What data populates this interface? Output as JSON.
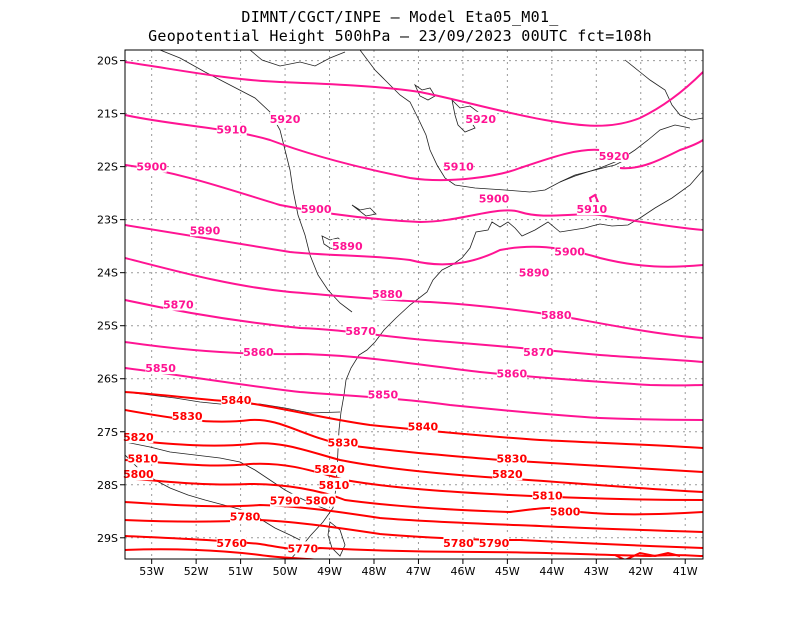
{
  "header": {
    "line1": "DIMNT/CGCT/INPE –  Model Eta05_M01_",
    "line2": "Geopotential Height 500hPa –  23/09/2023 00UTC fct=108h"
  },
  "axes": {
    "x_tick_labels": [
      "53W",
      "52W",
      "51W",
      "50W",
      "49W",
      "48W",
      "47W",
      "46W",
      "45W",
      "44W",
      "43W",
      "42W",
      "41W"
    ],
    "y_tick_labels": [
      "20S",
      "21S",
      "22S",
      "23S",
      "24S",
      "25S",
      "26S",
      "27S",
      "28S",
      "29S"
    ]
  },
  "contour_colors": {
    "high": "#ff1493",
    "low": "#ff0000"
  },
  "chart_data": {
    "type": "contour",
    "variable": "Geopotential Height 500hPa",
    "contour_interval": 10,
    "contour_levels": [
      5760,
      5770,
      5780,
      5790,
      5800,
      5810,
      5820,
      5830,
      5840,
      5850,
      5860,
      5870,
      5880,
      5890,
      5900,
      5910,
      5920
    ],
    "lon_range": [
      -53.6,
      -40.6
    ],
    "lat_range": [
      -29.4,
      -19.8
    ],
    "grid": true,
    "labels": [
      {
        "text": "5920",
        "lon": -50.0,
        "lat": -21.1
      },
      {
        "text": "5910",
        "lon": -51.2,
        "lat": -21.3
      },
      {
        "text": "5920",
        "lon": -45.6,
        "lat": -21.1
      },
      {
        "text": "5920",
        "lon": -42.6,
        "lat": -21.8
      },
      {
        "text": "5900",
        "lon": -53.0,
        "lat": -22.0
      },
      {
        "text": "5910",
        "lon": -46.1,
        "lat": -22.0
      },
      {
        "text": "5900",
        "lon": -45.3,
        "lat": -22.6
      },
      {
        "text": "5910",
        "lon": -43.1,
        "lat": -22.8
      },
      {
        "text": "5900",
        "lon": -49.3,
        "lat": -22.8
      },
      {
        "text": "5890",
        "lon": -51.8,
        "lat": -23.2
      },
      {
        "text": "5890",
        "lon": -48.6,
        "lat": -23.5
      },
      {
        "text": "5900",
        "lon": -43.6,
        "lat": -23.6
      },
      {
        "text": "5890",
        "lon": -44.4,
        "lat": -24.0
      },
      {
        "text": "5880",
        "lon": -47.7,
        "lat": -24.4
      },
      {
        "text": "5870",
        "lon": -52.4,
        "lat": -24.6
      },
      {
        "text": "5880",
        "lon": -43.9,
        "lat": -24.8
      },
      {
        "text": "5870",
        "lon": -48.3,
        "lat": -25.1
      },
      {
        "text": "5860",
        "lon": -50.6,
        "lat": -25.5
      },
      {
        "text": "5870",
        "lon": -44.3,
        "lat": -25.5
      },
      {
        "text": "5850",
        "lon": -52.8,
        "lat": -25.8
      },
      {
        "text": "5860",
        "lon": -44.9,
        "lat": -25.9
      },
      {
        "text": "5840",
        "lon": -51.1,
        "lat": -26.4
      },
      {
        "text": "5850",
        "lon": -47.8,
        "lat": -26.3
      },
      {
        "text": "5830",
        "lon": -52.2,
        "lat": -26.7
      },
      {
        "text": "5840",
        "lon": -46.9,
        "lat": -26.9
      },
      {
        "text": "5820",
        "lon": -53.3,
        "lat": -27.1
      },
      {
        "text": "5830",
        "lon": -48.7,
        "lat": -27.2
      },
      {
        "text": "5810",
        "lon": -53.2,
        "lat": -27.5
      },
      {
        "text": "5820",
        "lon": -49.0,
        "lat": -27.7
      },
      {
        "text": "5830",
        "lon": -44.9,
        "lat": -27.5
      },
      {
        "text": "5800",
        "lon": -53.3,
        "lat": -27.8
      },
      {
        "text": "5810",
        "lon": -48.9,
        "lat": -28.0
      },
      {
        "text": "5820",
        "lon": -45.0,
        "lat": -27.8
      },
      {
        "text": "5790",
        "lon": -50.0,
        "lat": -28.3
      },
      {
        "text": "5800",
        "lon": -49.2,
        "lat": -28.3
      },
      {
        "text": "5810",
        "lon": -44.1,
        "lat": -28.2
      },
      {
        "text": "5780",
        "lon": -50.9,
        "lat": -28.6
      },
      {
        "text": "5800",
        "lon": -43.7,
        "lat": -28.5
      },
      {
        "text": "5760",
        "lon": -51.2,
        "lat": -29.1
      },
      {
        "text": "5770",
        "lon": -49.6,
        "lat": -29.2
      },
      {
        "text": "5780",
        "lon": -46.1,
        "lat": -29.1
      },
      {
        "text": "5790",
        "lon": -45.3,
        "lat": -29.1
      }
    ]
  }
}
